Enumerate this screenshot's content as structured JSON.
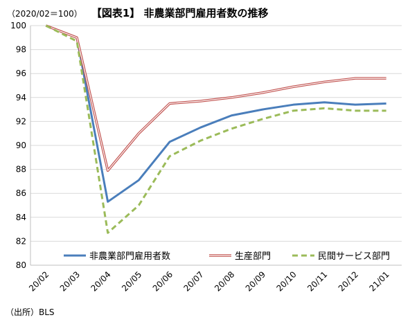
{
  "header": {
    "base_note": "（2020/02＝100）",
    "title": "【図表1】 非農業部門雇用者数の推移"
  },
  "source": "（出所）BLS",
  "chart_data": {
    "type": "line",
    "title": "【図表1】 非農業部門雇用者数の推移",
    "categories": [
      "20/02",
      "20/03",
      "20/04",
      "20/05",
      "20/06",
      "20/07",
      "20/08",
      "20/09",
      "20/10",
      "20/11",
      "20/12",
      "21/01"
    ],
    "ylim": [
      80,
      100
    ],
    "yticks": [
      80,
      82,
      84,
      86,
      88,
      90,
      92,
      94,
      96,
      98,
      100
    ],
    "grid": true,
    "legend_position": "bottom",
    "series": [
      {
        "name": "非農業部門雇用者数",
        "color": "#4a7ebb",
        "style": "solid",
        "values": [
          100,
          99.0,
          85.3,
          87.1,
          90.3,
          91.5,
          92.5,
          93.0,
          93.4,
          93.6,
          93.4,
          93.5
        ]
      },
      {
        "name": "生産部門",
        "color": "#c0504d",
        "style": "double",
        "values": [
          100,
          99.0,
          87.9,
          91.0,
          93.5,
          93.7,
          94.0,
          94.4,
          94.9,
          95.3,
          95.6,
          95.6
        ]
      },
      {
        "name": "民間サービス部門",
        "color": "#9bbb59",
        "style": "dashed",
        "values": [
          100,
          98.7,
          82.7,
          85.0,
          89.1,
          90.4,
          91.4,
          92.2,
          92.9,
          93.1,
          92.9,
          92.9
        ]
      }
    ]
  }
}
